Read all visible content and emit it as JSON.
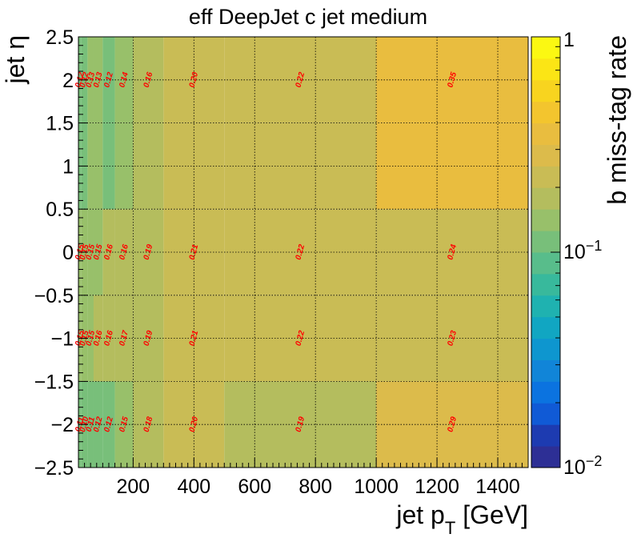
{
  "chart_data": {
    "type": "heatmap",
    "title": "eff DeepJet c jet medium",
    "xlabel_main": "jet p",
    "xlabel_sub": "T",
    "xlabel_unit": " [GeV]",
    "ylabel": "jet η",
    "zlabel": "b miss-tag rate",
    "x_edges": [
      20,
      30,
      50,
      70,
      100,
      140,
      200,
      300,
      500,
      1000,
      1500
    ],
    "y_edges": [
      -2.5,
      -1.5,
      -0.5,
      0.5,
      1.5,
      2.5
    ],
    "z_scale": "log",
    "zlim": [
      0.01,
      1
    ],
    "xlim": [
      20,
      1500
    ],
    "ylim": [
      -2.5,
      2.5
    ],
    "x_ticks": [
      "200",
      "400",
      "600",
      "800",
      "1000",
      "1200",
      "1400"
    ],
    "y_ticks": [
      "−2.5",
      "−2",
      "−1.5",
      "−1",
      "−0.5",
      "0",
      "0.5",
      "1",
      "1.5",
      "2",
      "2.5"
    ],
    "z_ticks": [
      {
        "base": "1",
        "exp": ""
      },
      {
        "base": "10",
        "exp": "−1"
      },
      {
        "base": "10",
        "exp": "−2"
      }
    ],
    "values": [
      [
        0.11,
        0.1,
        0.11,
        0.12,
        0.12,
        0.15,
        0.18,
        0.2,
        0.19,
        0.29
      ],
      [
        0.15,
        0.15,
        0.15,
        0.16,
        0.16,
        0.17,
        0.19,
        0.21,
        0.22,
        0.23
      ],
      [
        0.15,
        0.15,
        0.15,
        0.15,
        0.16,
        0.16,
        0.19,
        0.21,
        0.22,
        0.24
      ],
      [
        0.12,
        0.12,
        0.13,
        0.13,
        0.12,
        0.14,
        0.16,
        0.2,
        0.22,
        0.35
      ],
      [
        0.12,
        0.12,
        0.13,
        0.13,
        0.12,
        0.14,
        0.16,
        0.2,
        0.22,
        0.35
      ]
    ],
    "label_text": [
      [
        "0.11",
        "0.10",
        "0.11",
        "0.12",
        "0.12",
        "0.15",
        "0.18",
        "0.20",
        "0.19",
        "0.29"
      ],
      [
        "0.15",
        "0.15",
        "0.15",
        "0.16",
        "0.16",
        "0.17",
        "0.19",
        "0.21",
        "0.22",
        "0.23"
      ],
      [
        "0.15",
        "0.15",
        "0.15",
        "0.15",
        "0.16",
        "0.16",
        "0.19",
        "0.21",
        "0.22",
        "0.24"
      ],
      [
        "",
        "",
        "",
        "",
        "",
        "",
        "",
        "",
        "",
        ""
      ],
      [
        "0.12",
        "0.12",
        "0.13",
        "0.13",
        "0.12",
        "0.14",
        "0.16",
        "0.20",
        "0.22",
        "0.35"
      ]
    ],
    "palette": [
      "#2d2f95",
      "#1d3bb1",
      "#105ad6",
      "#0b73e0",
      "#1185d8",
      "#0e96cf",
      "#11a6c2",
      "#1fb2b0",
      "#38b99c",
      "#58bd8b",
      "#78bf7a",
      "#98c06a",
      "#b4bd5e",
      "#c9bc55",
      "#dcbb4b",
      "#e9bd3f",
      "#f3c52e",
      "#f8d41f",
      "#fbe515",
      "#fbf812"
    ],
    "grid": true
  }
}
